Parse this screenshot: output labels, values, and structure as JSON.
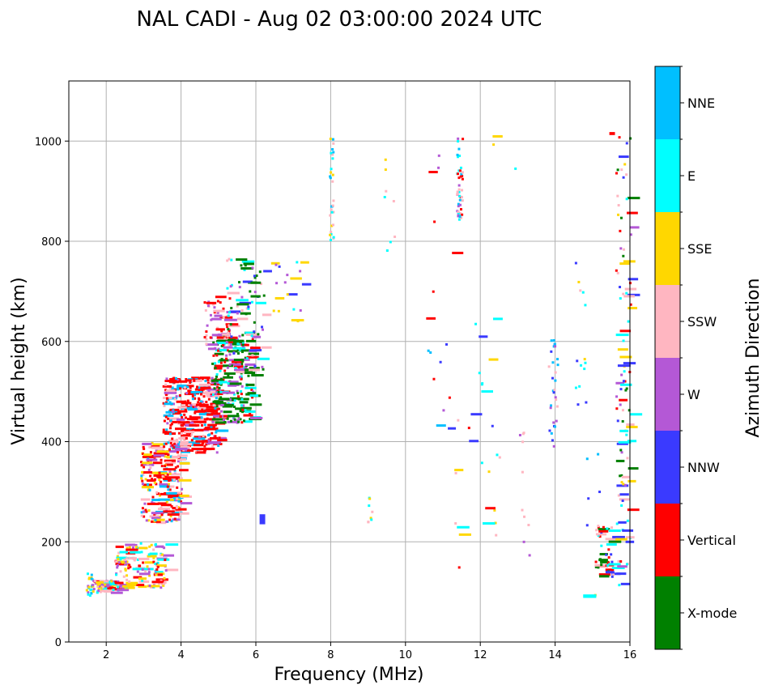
{
  "chart_data": {
    "type": "scatter",
    "title": "NAL CADI - Aug 02 03:00:00 2024 UTC",
    "xlabel": "Frequency (MHz)",
    "ylabel": "Virtual height (km)",
    "xlim": [
      1,
      16
    ],
    "ylim": [
      0,
      1120
    ],
    "xticks": [
      2,
      4,
      6,
      8,
      10,
      12,
      14,
      16
    ],
    "yticks": [
      0,
      200,
      400,
      600,
      800,
      1000
    ],
    "grid": true,
    "colorbar": {
      "title": "Azimuth Direction",
      "categories": [
        "X-mode",
        "Vertical",
        "NNW",
        "W",
        "SSW",
        "SSE",
        "E",
        "NNE"
      ],
      "colors": [
        "#008000",
        "#ff0000",
        "#3a3aff",
        "#b458d6",
        "#ffb6c1",
        "#ffd700",
        "#00ffff",
        "#00bfff"
      ]
    },
    "clusters": [
      {
        "x": [
          1.45,
          1.6
        ],
        "y": [
          90,
          145
        ],
        "n": 22,
        "cats": [
          7,
          5,
          6,
          3
        ]
      },
      {
        "x": [
          1.6,
          2.3
        ],
        "y": [
          100,
          125
        ],
        "n": 60,
        "cats": [
          1,
          6,
          5,
          3,
          4
        ]
      },
      {
        "x": [
          2.2,
          3.6
        ],
        "y": [
          110,
          200
        ],
        "n": 150,
        "cats": [
          1,
          3,
          4,
          5,
          6
        ]
      },
      {
        "x": [
          2.9,
          4.0
        ],
        "y": [
          240,
          400
        ],
        "n": 230,
        "cats": [
          1,
          1,
          1,
          4,
          7,
          3,
          5
        ]
      },
      {
        "x": [
          3.5,
          5.0
        ],
        "y": [
          380,
          530
        ],
        "n": 360,
        "cats": [
          1,
          1,
          1,
          1,
          3,
          4,
          7
        ]
      },
      {
        "x": [
          4.8,
          5.9
        ],
        "y": [
          440,
          620
        ],
        "n": 220,
        "cats": [
          0,
          0,
          0,
          6,
          1,
          3
        ]
      },
      {
        "x": [
          4.6,
          5.3
        ],
        "y": [
          580,
          700
        ],
        "n": 55,
        "cats": [
          1,
          1,
          4,
          3
        ]
      },
      {
        "x": [
          5.2,
          6.2
        ],
        "y": [
          540,
          770
        ],
        "n": 90,
        "cats": [
          0,
          0,
          6,
          2,
          3,
          4
        ]
      },
      {
        "x": [
          6.4,
          7.3
        ],
        "y": [
          640,
          765
        ],
        "n": 20,
        "cats": [
          3,
          6,
          5,
          2
        ]
      },
      {
        "x": [
          7.95,
          8.05
        ],
        "y": [
          800,
          1010
        ],
        "n": 30,
        "cats": [
          5,
          6,
          4,
          7
        ]
      },
      {
        "x": [
          8.95,
          9.1
        ],
        "y": [
          240,
          290
        ],
        "n": 8,
        "cats": [
          4,
          5,
          6
        ]
      },
      {
        "x": [
          9.4,
          9.7
        ],
        "y": [
          700,
          985
        ],
        "n": 8,
        "cats": [
          5,
          6,
          4
        ]
      },
      {
        "x": [
          10.5,
          11.3
        ],
        "y": [
          360,
          990
        ],
        "n": 16,
        "cats": [
          3,
          2,
          7,
          1
        ]
      },
      {
        "x": [
          11.35,
          11.5
        ],
        "y": [
          845,
          1010
        ],
        "n": 45,
        "cats": [
          1,
          7,
          6,
          3,
          4
        ]
      },
      {
        "x": [
          11.3,
          12.5
        ],
        "y": [
          85,
          680
        ],
        "n": 28,
        "cats": [
          4,
          5,
          6,
          2,
          1
        ]
      },
      {
        "x": [
          12.2,
          13.0
        ],
        "y": [
          870,
          1015
        ],
        "n": 3,
        "cats": [
          6,
          5
        ]
      },
      {
        "x": [
          13.0,
          13.3
        ],
        "y": [
          110,
          440
        ],
        "n": 10,
        "cats": [
          3,
          4
        ]
      },
      {
        "x": [
          13.8,
          14.05
        ],
        "y": [
          380,
          610
        ],
        "n": 30,
        "cats": [
          2,
          3,
          4,
          7
        ]
      },
      {
        "x": [
          14.5,
          14.8
        ],
        "y": [
          430,
          800
        ],
        "n": 14,
        "cats": [
          5,
          6,
          4,
          2
        ]
      },
      {
        "x": [
          14.8,
          15.2
        ],
        "y": [
          85,
          380
        ],
        "n": 6,
        "cats": [
          7,
          5,
          2
        ]
      },
      {
        "x": [
          15.05,
          15.55
        ],
        "y": [
          130,
          235
        ],
        "n": 50,
        "cats": [
          1,
          0,
          4,
          6,
          2
        ]
      },
      {
        "x": [
          15.6,
          16.0
        ],
        "y": [
          90,
          1020
        ],
        "n": 110,
        "cats": [
          1,
          0,
          2,
          3,
          4,
          5,
          6
        ]
      }
    ],
    "patches": [
      {
        "x": [
          6.1,
          6.25
        ],
        "y": [
          235,
          255
        ],
        "cat": 2
      },
      {
        "x": [
          14.75,
          15.1
        ],
        "y": [
          88,
          95
        ],
        "cat": 6
      },
      {
        "x": [
          15.45,
          15.6
        ],
        "y": [
          1012,
          1018
        ],
        "cat": 1
      }
    ]
  }
}
